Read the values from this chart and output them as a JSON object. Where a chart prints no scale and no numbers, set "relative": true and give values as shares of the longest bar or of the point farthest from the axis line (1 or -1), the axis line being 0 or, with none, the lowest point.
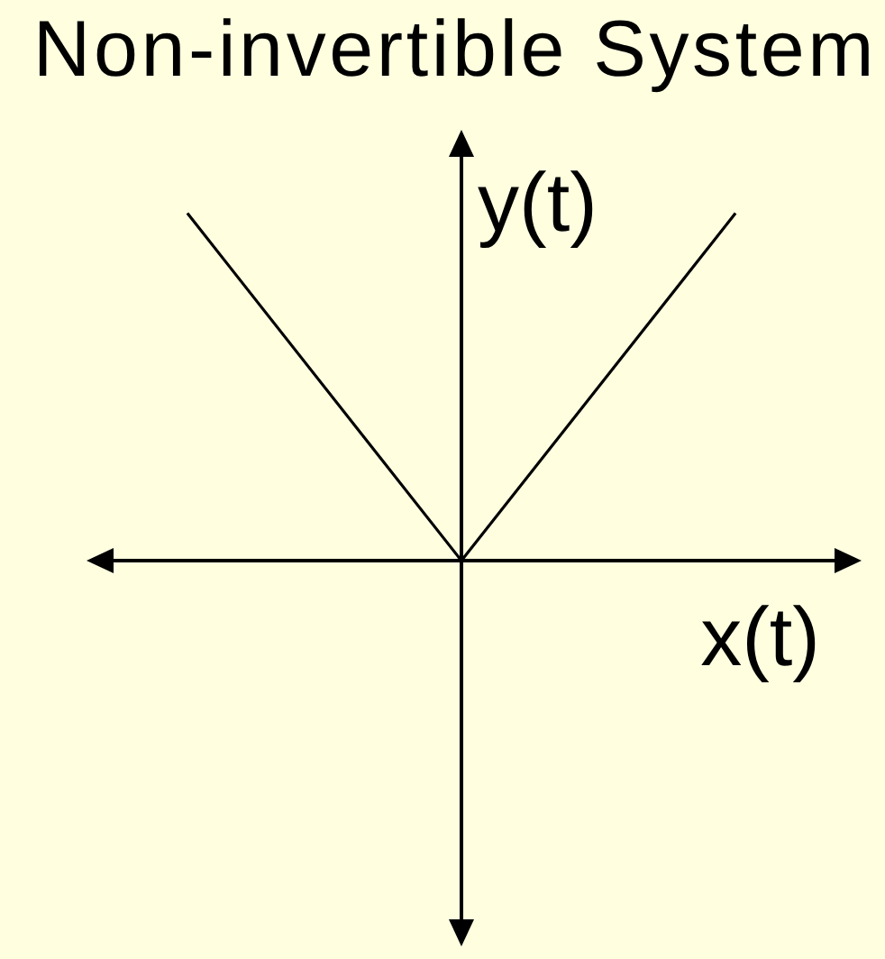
{
  "chart_data": {
    "type": "line",
    "title": "Non-invertible System",
    "xlabel": "x(t)",
    "ylabel": "y(t)",
    "categories": [
      null,
      null,
      null
    ],
    "relative": true,
    "series": [
      {
        "color": "#000000",
        "values": [
          1,
          0,
          1
        ]
      }
    ],
    "marker": "none",
    "line_style": "solid",
    "legend": false
  }
}
